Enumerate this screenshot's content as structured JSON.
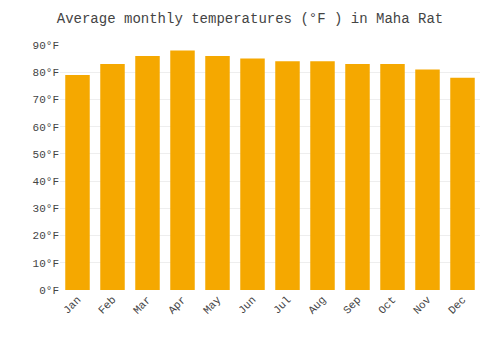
{
  "chart_data": {
    "type": "bar",
    "title": "Average monthly temperatures (°F ) in Maha Rat",
    "categories": [
      "Jan",
      "Feb",
      "Mar",
      "Apr",
      "May",
      "Jun",
      "Jul",
      "Aug",
      "Sep",
      "Oct",
      "Nov",
      "Dec"
    ],
    "values": [
      79,
      83,
      86,
      88,
      86,
      85,
      84,
      84,
      83,
      83,
      81,
      78
    ],
    "color": "#F5A800",
    "ylim": [
      0,
      90
    ],
    "yticks": [
      {
        "value": 0,
        "label": "0°F"
      },
      {
        "value": 10,
        "label": "10°F"
      },
      {
        "value": 20,
        "label": "20°F"
      },
      {
        "value": 30,
        "label": "30°F"
      },
      {
        "value": 40,
        "label": "40°F"
      },
      {
        "value": 50,
        "label": "50°F"
      },
      {
        "value": 60,
        "label": "60°F"
      },
      {
        "value": 70,
        "label": "70°F"
      },
      {
        "value": 80,
        "label": "80°F"
      },
      {
        "value": 90,
        "label": "90°F"
      }
    ],
    "grid": true
  }
}
